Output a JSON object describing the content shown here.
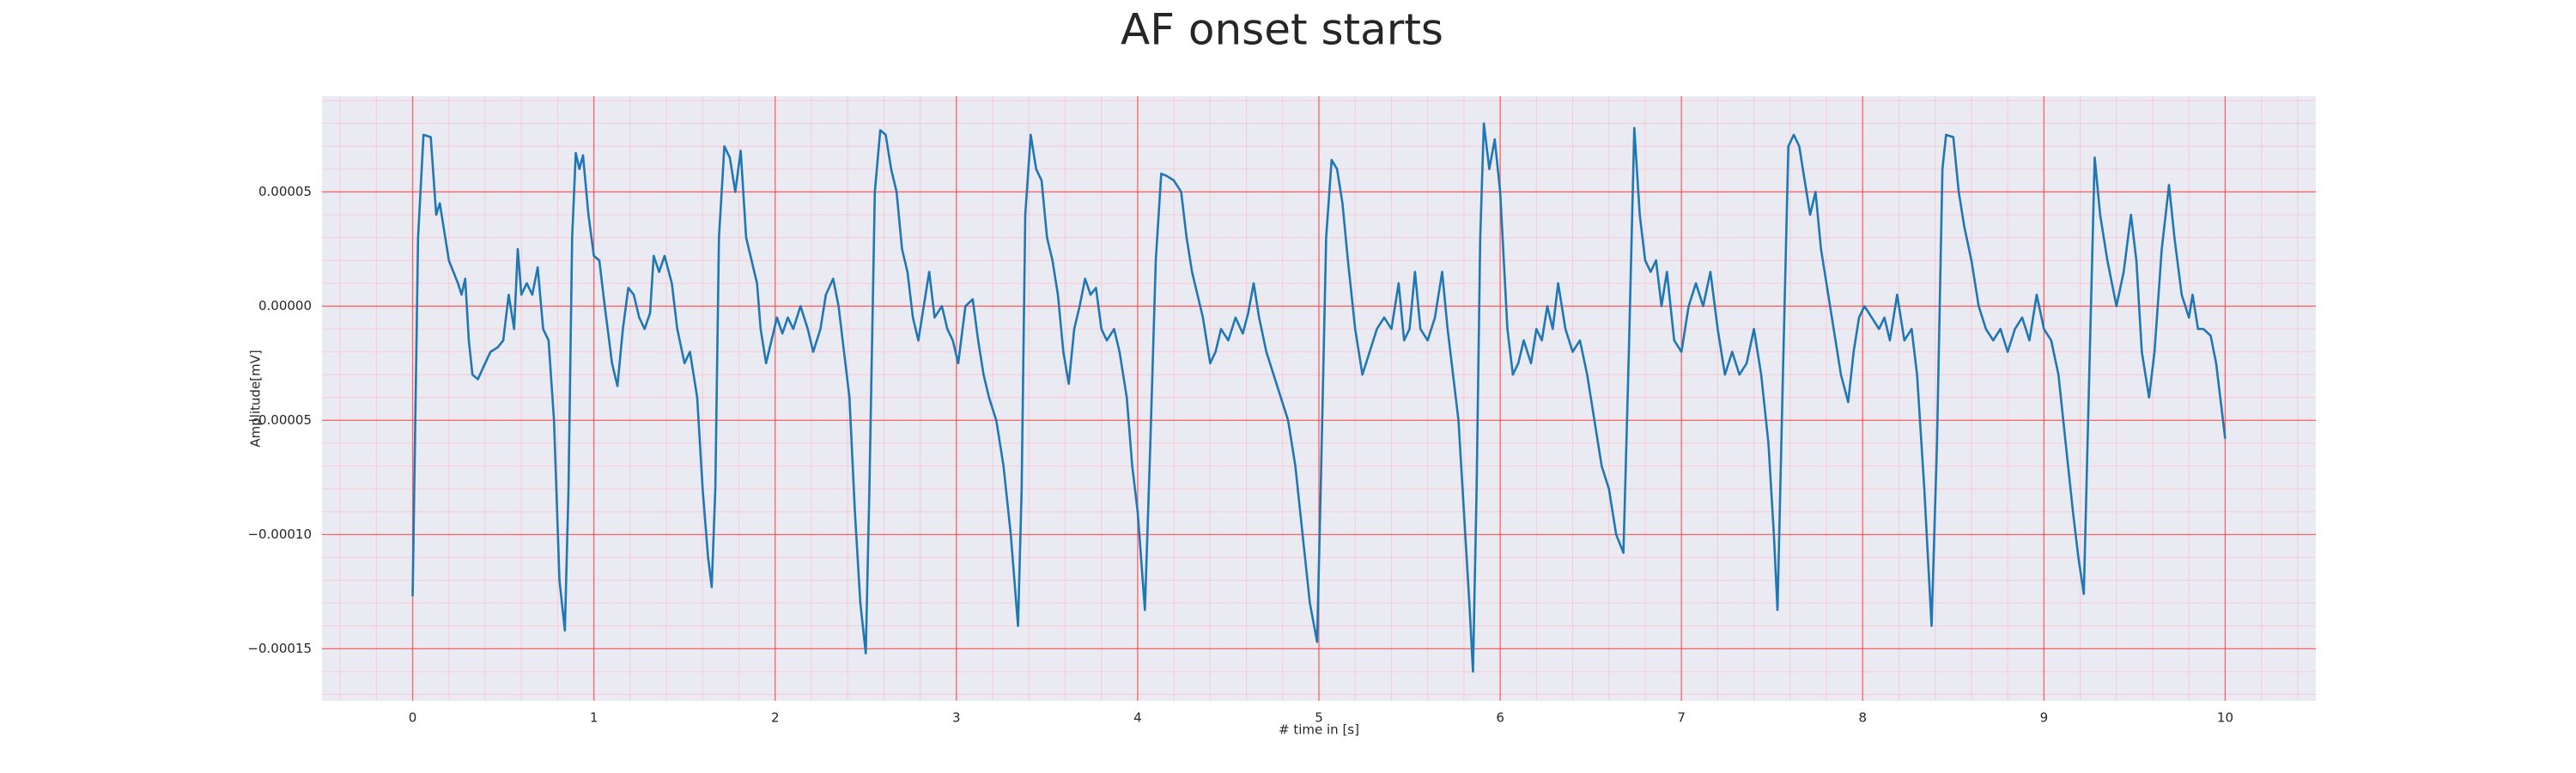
{
  "chart_data": {
    "type": "line",
    "title": "AF onset starts",
    "xlabel": "# time in [s]",
    "ylabel": "Amplitude[mV]",
    "color": "#1f77b4",
    "grid": true,
    "xlim": [
      -0.5,
      10.5
    ],
    "ylim": [
      -0.0001728,
      9.19e-05
    ],
    "xticks": [
      0,
      1,
      2,
      3,
      4,
      5,
      6,
      7,
      8,
      9,
      10
    ],
    "yticks": [
      {
        "value": -0.00015,
        "label": "−0.00015"
      },
      {
        "value": -0.0001,
        "label": "−0.00010"
      },
      {
        "value": -5e-05,
        "label": "−0.00005"
      },
      {
        "value": 0,
        "label": "0.00000"
      },
      {
        "value": 5e-05,
        "label": "0.00005"
      }
    ],
    "xminorticks": [
      -0.4,
      -0.2,
      0.2,
      0.4,
      0.6,
      0.8,
      1.2,
      1.4,
      1.6,
      1.8,
      2.2,
      2.4,
      2.6,
      2.8,
      3.2,
      3.4,
      3.6,
      3.8,
      4.2,
      4.4,
      4.6,
      4.8,
      5.2,
      5.4,
      5.6,
      5.8,
      6.2,
      6.4,
      6.6,
      6.8,
      7.2,
      7.4,
      7.6,
      7.8,
      8.2,
      8.4,
      8.6,
      8.8,
      9.2,
      9.4,
      9.6,
      9.8,
      10.2,
      10.4
    ],
    "yminorticks": [
      -0.00017,
      -0.00016,
      -0.00014,
      -0.00013,
      -0.00012,
      -0.00011,
      -9e-05,
      -8e-05,
      -7e-05,
      -6e-05,
      -4e-05,
      -3e-05,
      -2e-05,
      -1e-05,
      1e-05,
      2e-05,
      3e-05,
      4e-05,
      6e-05,
      7e-05,
      8e-05,
      9e-05
    ],
    "x": [
      0,
      0.03,
      0.06,
      0.1,
      0.13,
      0.15,
      0.17,
      0.2,
      0.25,
      0.27,
      0.29,
      0.31,
      0.33,
      0.36,
      0.4,
      0.43,
      0.47,
      0.5,
      0.53,
      0.56,
      0.58,
      0.6,
      0.63,
      0.66,
      0.69,
      0.72,
      0.75,
      0.78,
      0.81,
      0.84,
      0.86,
      0.88,
      0.9,
      0.92,
      0.94,
      0.97,
      1.0,
      1.03,
      1.06,
      1.1,
      1.13,
      1.16,
      1.19,
      1.22,
      1.25,
      1.28,
      1.31,
      1.33,
      1.36,
      1.39,
      1.43,
      1.46,
      1.5,
      1.53,
      1.57,
      1.6,
      1.63,
      1.65,
      1.67,
      1.69,
      1.72,
      1.75,
      1.78,
      1.81,
      1.84,
      1.87,
      1.9,
      1.92,
      1.95,
      1.98,
      2.01,
      2.04,
      2.07,
      2.1,
      2.14,
      2.18,
      2.21,
      2.25,
      2.28,
      2.32,
      2.35,
      2.38,
      2.41,
      2.44,
      2.47,
      2.5,
      2.52,
      2.55,
      2.58,
      2.61,
      2.64,
      2.67,
      2.7,
      2.73,
      2.76,
      2.79,
      2.82,
      2.85,
      2.88,
      2.92,
      2.95,
      2.98,
      3.01,
      3.05,
      3.09,
      3.12,
      3.15,
      3.18,
      3.22,
      3.26,
      3.3,
      3.34,
      3.36,
      3.38,
      3.41,
      3.44,
      3.47,
      3.5,
      3.53,
      3.56,
      3.59,
      3.62,
      3.65,
      3.68,
      3.71,
      3.74,
      3.77,
      3.8,
      3.83,
      3.87,
      3.9,
      3.94,
      3.97,
      4.0,
      4.04,
      4.07,
      4.1,
      4.13,
      4.16,
      4.2,
      4.24,
      4.27,
      4.3,
      4.33,
      4.36,
      4.4,
      4.43,
      4.46,
      4.5,
      4.54,
      4.58,
      4.61,
      4.64,
      4.67,
      4.71,
      4.75,
      4.79,
      4.83,
      4.87,
      4.91,
      4.95,
      4.99,
      5.01,
      5.04,
      5.07,
      5.1,
      5.13,
      5.16,
      5.2,
      5.24,
      5.28,
      5.32,
      5.36,
      5.4,
      5.44,
      5.47,
      5.5,
      5.53,
      5.56,
      5.6,
      5.64,
      5.68,
      5.71,
      5.74,
      5.77,
      5.8,
      5.83,
      5.85,
      5.87,
      5.89,
      5.91,
      5.94,
      5.97,
      6.0,
      6.02,
      6.04,
      6.07,
      6.1,
      6.13,
      6.17,
      6.2,
      6.23,
      6.26,
      6.29,
      6.32,
      6.36,
      6.4,
      6.44,
      6.48,
      6.52,
      6.56,
      6.6,
      6.64,
      6.68,
      6.71,
      6.74,
      6.77,
      6.8,
      6.83,
      6.86,
      6.89,
      6.92,
      6.96,
      7.0,
      7.04,
      7.08,
      7.12,
      7.16,
      7.2,
      7.24,
      7.28,
      7.32,
      7.36,
      7.4,
      7.44,
      7.48,
      7.51,
      7.53,
      7.56,
      7.59,
      7.62,
      7.65,
      7.68,
      7.71,
      7.74,
      7.77,
      7.8,
      7.84,
      7.88,
      7.92,
      7.95,
      7.98,
      8.01,
      8.05,
      8.09,
      8.12,
      8.15,
      8.19,
      8.23,
      8.27,
      8.3,
      8.34,
      8.38,
      8.41,
      8.44,
      8.46,
      8.5,
      8.53,
      8.56,
      8.6,
      8.64,
      8.68,
      8.72,
      8.76,
      8.8,
      8.84,
      8.88,
      8.92,
      8.96,
      9.0,
      9.04,
      9.08,
      9.12,
      9.16,
      9.19,
      9.22,
      9.25,
      9.28,
      9.31,
      9.35,
      9.4,
      9.44,
      9.48,
      9.51,
      9.54,
      9.58,
      9.61,
      9.65,
      9.69,
      9.72,
      9.76,
      9.8,
      9.82,
      9.85,
      9.88,
      9.92,
      9.95,
      10
    ],
    "values": [
      -0.000127,
      3e-05,
      7.5e-05,
      7.4e-05,
      4e-05,
      4.5e-05,
      3.5e-05,
      2e-05,
      1e-05,
      5e-06,
      1.2e-05,
      -1.5e-05,
      -3e-05,
      -3.2e-05,
      -2.5e-05,
      -2e-05,
      -1.8e-05,
      -1.5e-05,
      5e-06,
      -1e-05,
      2.5e-05,
      5e-06,
      1e-05,
      5e-06,
      1.7e-05,
      -1e-05,
      -1.5e-05,
      -5e-05,
      -0.00012,
      -0.000142,
      -8e-05,
      3e-05,
      6.7e-05,
      6e-05,
      6.6e-05,
      4e-05,
      2.2e-05,
      2e-05,
      0,
      -2.5e-05,
      -3.5e-05,
      -1e-05,
      8e-06,
      5e-06,
      -5e-06,
      -1e-05,
      -3e-06,
      2.2e-05,
      1.5e-05,
      2.2e-05,
      1e-05,
      -1e-05,
      -2.5e-05,
      -2e-05,
      -4e-05,
      -8e-05,
      -0.00011,
      -0.000123,
      -8e-05,
      3e-05,
      7e-05,
      6.5e-05,
      5e-05,
      6.8e-05,
      3e-05,
      2e-05,
      1e-05,
      -1e-05,
      -2.5e-05,
      -1.5e-05,
      -5e-06,
      -1.2e-05,
      -5e-06,
      -1e-05,
      0,
      -1e-05,
      -2e-05,
      -1e-05,
      5e-06,
      1.2e-05,
      0,
      -2e-05,
      -4e-05,
      -9e-05,
      -0.00013,
      -0.000152,
      -8e-05,
      5e-05,
      7.7e-05,
      7.5e-05,
      6e-05,
      5e-05,
      2.5e-05,
      1.5e-05,
      -5e-06,
      -1.5e-05,
      0,
      1.5e-05,
      -5e-06,
      0,
      -1e-05,
      -1.5e-05,
      -2.5e-05,
      0,
      3e-06,
      -1.5e-05,
      -3e-05,
      -4e-05,
      -5e-05,
      -7e-05,
      -0.0001,
      -0.00014,
      -8e-05,
      4e-05,
      7.5e-05,
      6e-05,
      5.5e-05,
      3e-05,
      2e-05,
      5e-06,
      -2e-05,
      -3.4e-05,
      -1e-05,
      0,
      1.2e-05,
      5e-06,
      8e-06,
      -1e-05,
      -1.5e-05,
      -1e-05,
      -2e-05,
      -4e-05,
      -7e-05,
      -9e-05,
      -0.000133,
      -6e-05,
      2e-05,
      5.8e-05,
      5.7e-05,
      5.5e-05,
      5e-05,
      3e-05,
      1.5e-05,
      5e-06,
      -5e-06,
      -2.5e-05,
      -2e-05,
      -1e-05,
      -1.5e-05,
      -5e-06,
      -1.2e-05,
      -3e-06,
      1e-05,
      -5e-06,
      -2e-05,
      -3e-05,
      -4e-05,
      -5e-05,
      -7e-05,
      -0.0001,
      -0.00013,
      -0.000147,
      -8e-05,
      3e-05,
      6.4e-05,
      6e-05,
      4.5e-05,
      2e-05,
      -1e-05,
      -3e-05,
      -2e-05,
      -1e-05,
      -5e-06,
      -1e-05,
      1e-05,
      -1.5e-05,
      -1e-05,
      1.5e-05,
      -1e-05,
      -1.5e-05,
      -5e-06,
      1.5e-05,
      -1e-05,
      -3e-05,
      -5e-05,
      -9e-05,
      -0.00013,
      -0.00016,
      -8e-05,
      3e-05,
      8e-05,
      6e-05,
      7.3e-05,
      5e-05,
      2e-05,
      -1e-05,
      -3e-05,
      -2.5e-05,
      -1.5e-05,
      -2.5e-05,
      -1e-05,
      -1.5e-05,
      0,
      -1e-05,
      1e-05,
      -1e-05,
      -2e-05,
      -1.5e-05,
      -3e-05,
      -5e-05,
      -7e-05,
      -8e-05,
      -0.0001,
      -0.000108,
      -2e-05,
      7.8e-05,
      4e-05,
      2e-05,
      1.5e-05,
      2e-05,
      0,
      1.5e-05,
      -1.5e-05,
      -2e-05,
      0,
      1e-05,
      0,
      1.5e-05,
      -1e-05,
      -3e-05,
      -2e-05,
      -3e-05,
      -2.5e-05,
      -1e-05,
      -3e-05,
      -6e-05,
      -0.0001,
      -0.000133,
      -3e-05,
      7e-05,
      7.5e-05,
      7e-05,
      5.5e-05,
      4e-05,
      5e-05,
      2.5e-05,
      1e-05,
      -1e-05,
      -3e-05,
      -4.2e-05,
      -2e-05,
      -5e-06,
      0,
      -5e-06,
      -1e-05,
      -5e-06,
      -1.5e-05,
      5e-06,
      -1.5e-05,
      -1e-05,
      -3e-05,
      -8e-05,
      -0.00014,
      -6e-05,
      6e-05,
      7.5e-05,
      7.4e-05,
      5e-05,
      3.5e-05,
      2e-05,
      0,
      -1e-05,
      -1.5e-05,
      -1e-05,
      -2e-05,
      -1e-05,
      -5e-06,
      -1.5e-05,
      5e-06,
      -1e-05,
      -1.5e-05,
      -3e-05,
      -6e-05,
      -9e-05,
      -0.00011,
      -0.000126,
      -3e-05,
      6.5e-05,
      4e-05,
      2e-05,
      0,
      1.5e-05,
      4e-05,
      2e-05,
      -2e-05,
      -4e-05,
      -2e-05,
      2.5e-05,
      5.3e-05,
      3e-05,
      5e-06,
      -5e-06,
      5e-06,
      -1e-05,
      -1e-05,
      -1.3e-05,
      -2.5e-05,
      -5.8e-05
    ]
  }
}
